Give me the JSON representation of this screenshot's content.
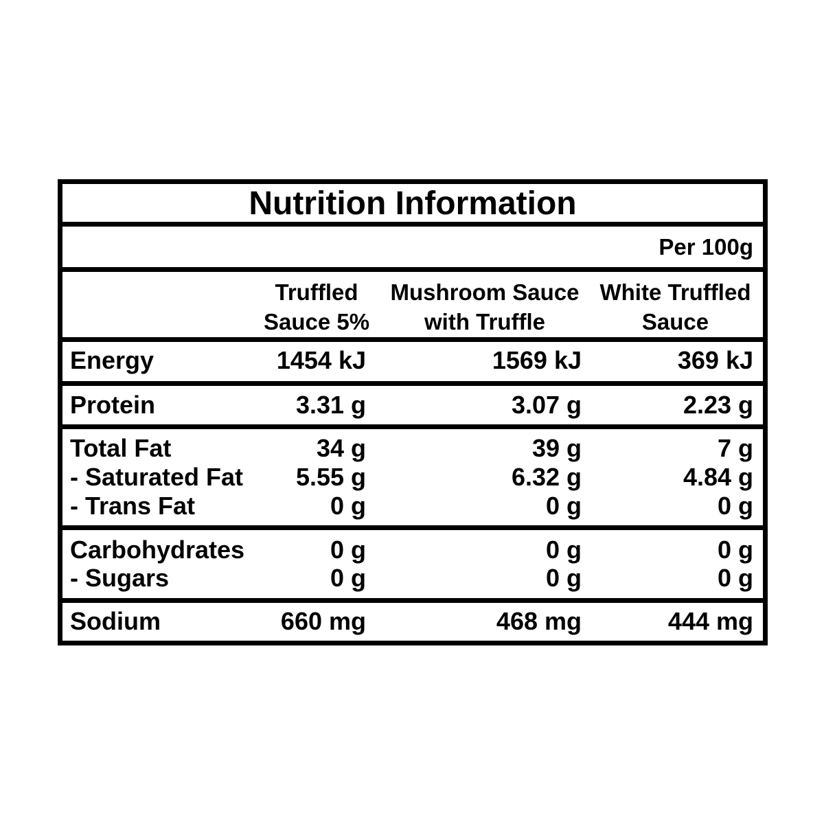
{
  "title": "Nutrition Information",
  "per": "Per 100g",
  "columns": [
    "Truffled\nSauce 5%",
    "Mushroom Sauce\nwith Truffle",
    "White Truffled\nSauce"
  ],
  "rows": {
    "energy": {
      "label": "Energy",
      "values": [
        "1454 kJ",
        "1569 kJ",
        "369 kJ"
      ]
    },
    "protein": {
      "label": "Protein",
      "values": [
        "3.31 g",
        "3.07 g",
        "2.23 g"
      ]
    },
    "total_fat": {
      "label": "Total Fat",
      "values": [
        "34 g",
        "39 g",
        "7 g"
      ]
    },
    "saturated_fat": {
      "label": "- Saturated Fat",
      "values": [
        "5.55 g",
        "6.32 g",
        "4.84 g"
      ]
    },
    "trans_fat": {
      "label": "- Trans Fat",
      "values": [
        "0 g",
        "0 g",
        "0 g"
      ]
    },
    "carbohydrates": {
      "label": "Carbohydrates",
      "values": [
        "0 g",
        "0 g",
        "0 g"
      ]
    },
    "sugars": {
      "label": "- Sugars",
      "values": [
        "0 g",
        "0 g",
        "0 g"
      ]
    },
    "sodium": {
      "label": "Sodium",
      "values": [
        "660 mg",
        "468 mg",
        "444 mg"
      ]
    }
  }
}
